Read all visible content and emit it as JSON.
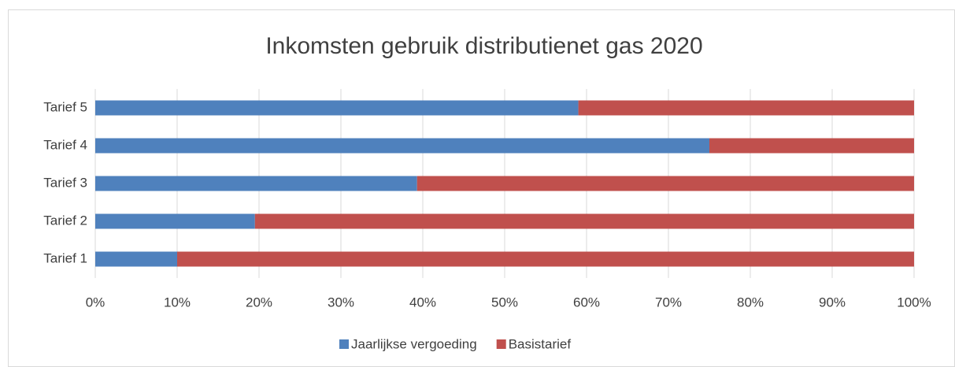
{
  "chart_data": {
    "type": "stacked_barh",
    "title": "Inkomsten gebruik distributienet gas 2020",
    "categories": [
      "Tarief 1",
      "Tarief 2",
      "Tarief 3",
      "Tarief 4",
      "Tarief 5"
    ],
    "series": [
      {
        "name": "Jaarlijkse vergoeding",
        "color": "#4f81bd",
        "values": [
          10,
          19.5,
          39.3,
          75,
          59
        ]
      },
      {
        "name": "Basistarief",
        "color": "#c0504d",
        "values": [
          90,
          80.5,
          60.7,
          25,
          41
        ]
      }
    ],
    "xlim": [
      0,
      100
    ],
    "xticks": [
      {
        "value": 0,
        "label": "0%"
      },
      {
        "value": 10,
        "label": "10%"
      },
      {
        "value": 20,
        "label": "20%"
      },
      {
        "value": 30,
        "label": "30%"
      },
      {
        "value": 40,
        "label": "40%"
      },
      {
        "value": 50,
        "label": "50%"
      },
      {
        "value": 60,
        "label": "60%"
      },
      {
        "value": 70,
        "label": "70%"
      },
      {
        "value": 80,
        "label": "80%"
      },
      {
        "value": 90,
        "label": "90%"
      },
      {
        "value": 100,
        "label": "100%"
      }
    ],
    "grid": true,
    "legend": "bottom"
  }
}
